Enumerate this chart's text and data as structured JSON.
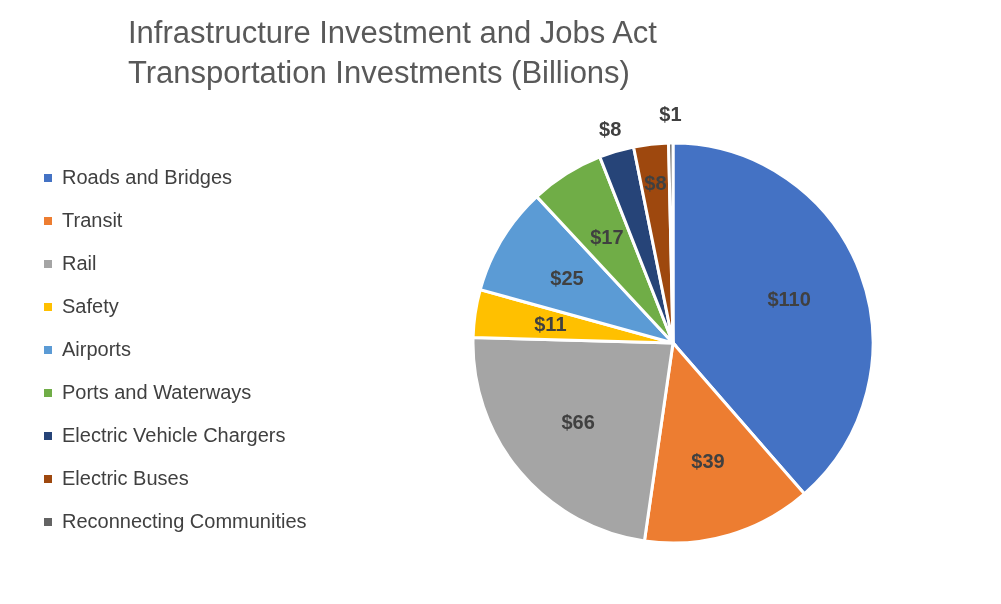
{
  "chart_data": {
    "type": "pie",
    "title": "Infrastructure Investment and Jobs Act\nTransportation Investments (Billions)",
    "categories": [
      "Roads and Bridges",
      "Transit",
      "Rail",
      "Safety",
      "Airports",
      "Ports and Waterways",
      "Electric Vehicle Chargers",
      "Electric Buses",
      "Reconnecting Communities"
    ],
    "values": [
      110,
      39,
      66,
      11,
      25,
      17,
      8,
      8,
      1
    ],
    "value_labels": [
      "$110",
      "$39",
      "$66",
      "$11",
      "$25",
      "$17",
      "$8",
      "$8",
      "$1"
    ],
    "colors": [
      "#4472c4",
      "#ed7d31",
      "#a5a5a5",
      "#ffc000",
      "#5b9bd5",
      "#70ad47",
      "#264478",
      "#9e480e",
      "#636363"
    ],
    "legend": "left"
  }
}
